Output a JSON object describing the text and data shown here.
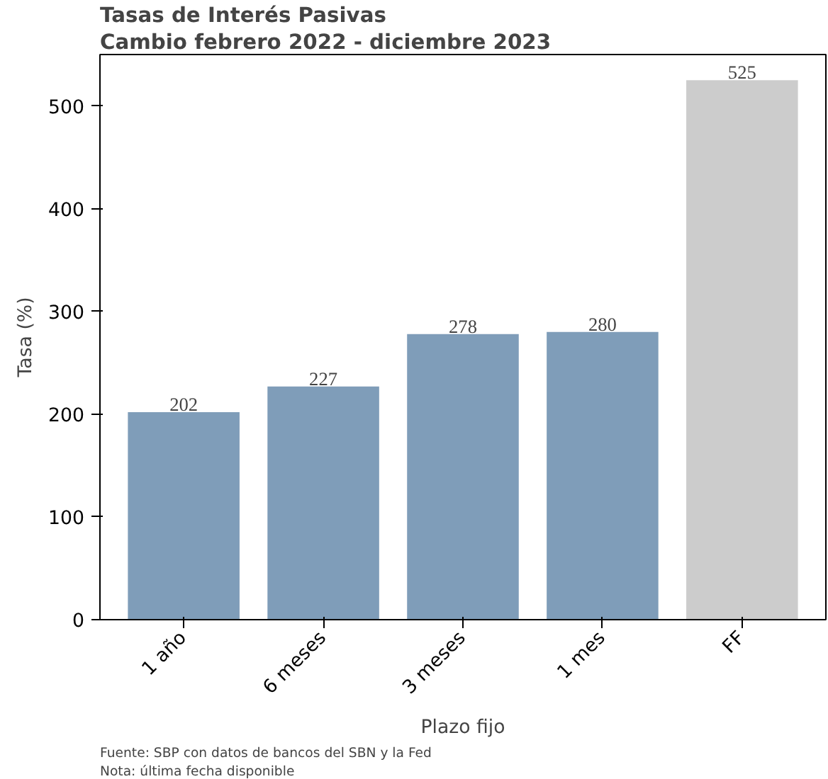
{
  "chart_data": {
    "type": "bar",
    "title": "Tasas de Interés Pasivas",
    "subtitle": "Cambio febrero 2022 - diciembre 2023",
    "xlabel": "Plazo fijo",
    "ylabel": "Tasa (%)",
    "categories": [
      "1 año",
      "6 meses",
      "3 meses",
      "1 mes",
      "FF"
    ],
    "values": [
      202,
      227,
      278,
      280,
      525
    ],
    "colors": [
      "#7f9db9",
      "#7f9db9",
      "#7f9db9",
      "#7f9db9",
      "#cccccc"
    ],
    "ylim": [
      0,
      550
    ],
    "yticks": [
      0,
      100,
      200,
      300,
      400,
      500
    ],
    "grid": false,
    "data_labels": true,
    "annotations": [
      "Fuente: SBP con datos de bancos del SBN y la Fed",
      "Nota: última fecha disponible"
    ]
  }
}
